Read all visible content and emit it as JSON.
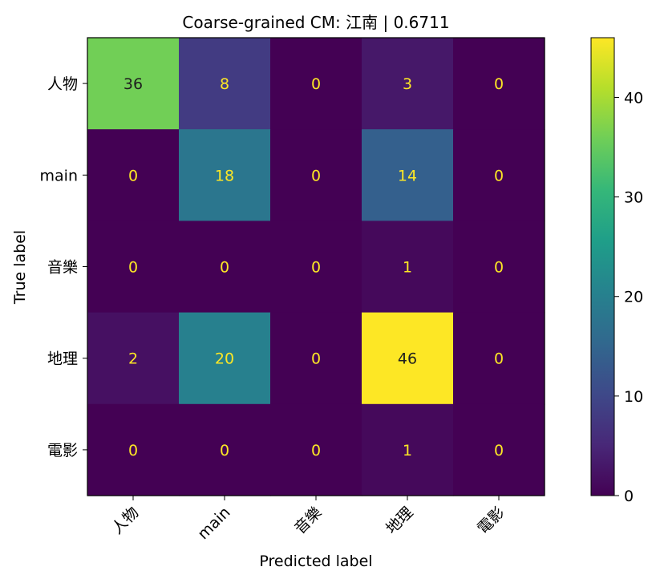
{
  "chart_data": {
    "type": "heatmap",
    "title": "Coarse-grained CM: 江南 | 0.6711",
    "xlabel": "Predicted label",
    "ylabel": "True label",
    "x_categories": [
      "人物",
      "main",
      "音樂",
      "地理",
      "電影"
    ],
    "y_categories": [
      "人物",
      "main",
      "音樂",
      "地理",
      "電影"
    ],
    "matrix": [
      [
        36,
        8,
        0,
        3,
        0
      ],
      [
        0,
        18,
        0,
        14,
        0
      ],
      [
        0,
        0,
        0,
        1,
        0
      ],
      [
        2,
        20,
        0,
        46,
        0
      ],
      [
        0,
        0,
        0,
        1,
        0
      ]
    ],
    "colormap": "viridis",
    "colorbar": {
      "min": 0,
      "max": 46,
      "ticks": [
        0,
        10,
        20,
        30,
        40
      ]
    },
    "text_color_light": "#fde725",
    "text_color_dark": "#1f1f1f"
  }
}
